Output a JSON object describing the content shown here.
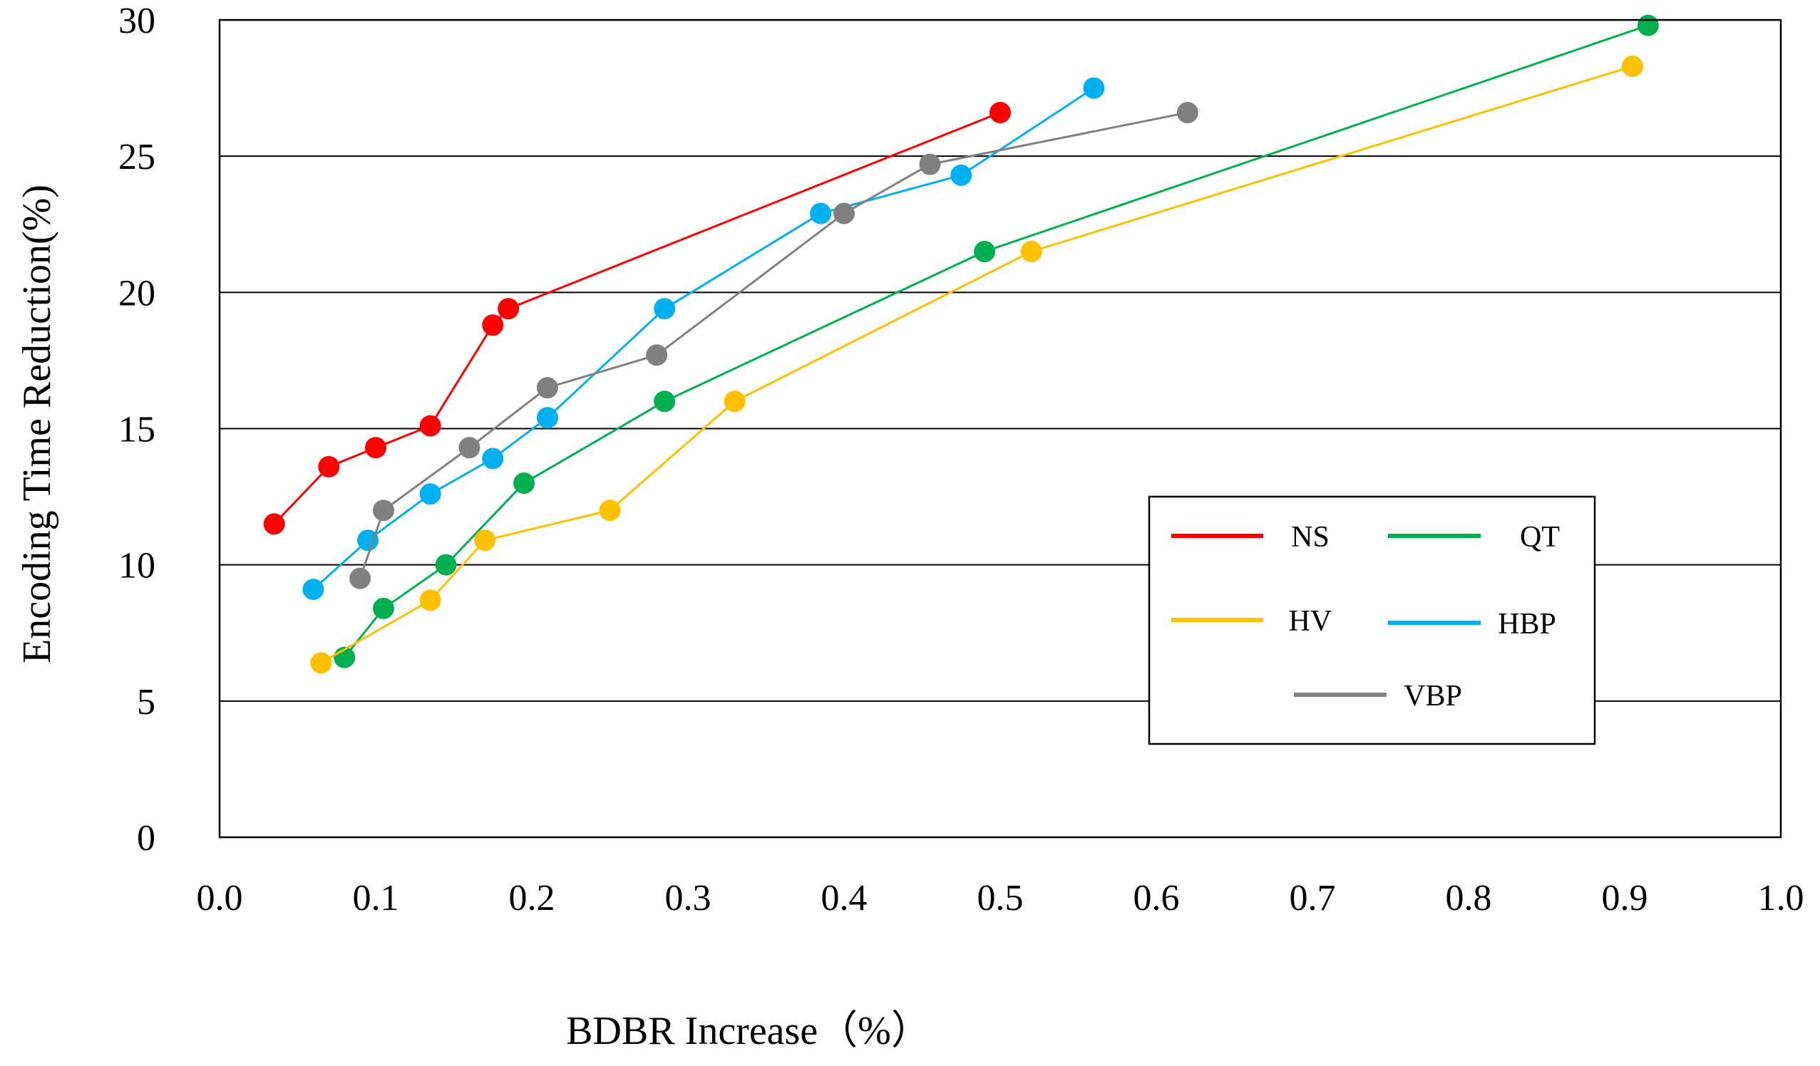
{
  "chart_data": {
    "type": "line",
    "title": "",
    "xlabel": "BDBR Increase（%）",
    "ylabel": "Encoding Time Reduction(%)",
    "xlim": [
      0.0,
      1.0
    ],
    "ylim": [
      0,
      30
    ],
    "x_ticks": [
      "0.0",
      "0.1",
      "0.2",
      "0.3",
      "0.4",
      "0.5",
      "0.6",
      "0.7",
      "0.8",
      "0.9",
      "1.0"
    ],
    "y_ticks": [
      "0",
      "5",
      "10",
      "15",
      "20",
      "25",
      "30"
    ],
    "grid": "horizontal",
    "legend_position": "right",
    "series": [
      {
        "name": "NS",
        "color": "#ff0000",
        "points": [
          [
            0.035,
            11.5
          ],
          [
            0.07,
            13.6
          ],
          [
            0.1,
            14.3
          ],
          [
            0.135,
            15.1
          ],
          [
            0.175,
            18.8
          ],
          [
            0.185,
            19.4
          ],
          [
            0.5,
            26.6
          ]
        ]
      },
      {
        "name": "QT",
        "color": "#00b050",
        "points": [
          [
            0.08,
            6.6
          ],
          [
            0.105,
            8.4
          ],
          [
            0.145,
            10.0
          ],
          [
            0.195,
            13.0
          ],
          [
            0.285,
            16.0
          ],
          [
            0.49,
            21.5
          ],
          [
            0.915,
            29.8
          ]
        ]
      },
      {
        "name": "HV",
        "color": "#ffc000",
        "points": [
          [
            0.065,
            6.4
          ],
          [
            0.135,
            8.7
          ],
          [
            0.17,
            10.9
          ],
          [
            0.25,
            12.0
          ],
          [
            0.33,
            16.0
          ],
          [
            0.52,
            21.5
          ],
          [
            0.905,
            28.3
          ]
        ]
      },
      {
        "name": "HBP",
        "color": "#00b0f0",
        "points": [
          [
            0.06,
            9.1
          ],
          [
            0.095,
            10.9
          ],
          [
            0.135,
            12.6
          ],
          [
            0.175,
            13.9
          ],
          [
            0.21,
            15.4
          ],
          [
            0.285,
            19.4
          ],
          [
            0.385,
            22.9
          ],
          [
            0.475,
            24.3
          ],
          [
            0.56,
            27.5
          ]
        ]
      },
      {
        "name": "VBP",
        "color": "#808080",
        "points": [
          [
            0.09,
            9.5
          ],
          [
            0.105,
            12.0
          ],
          [
            0.16,
            14.3
          ],
          [
            0.21,
            16.5
          ],
          [
            0.28,
            17.7
          ],
          [
            0.4,
            22.9
          ],
          [
            0.455,
            24.7
          ],
          [
            0.62,
            26.6
          ]
        ]
      }
    ]
  }
}
